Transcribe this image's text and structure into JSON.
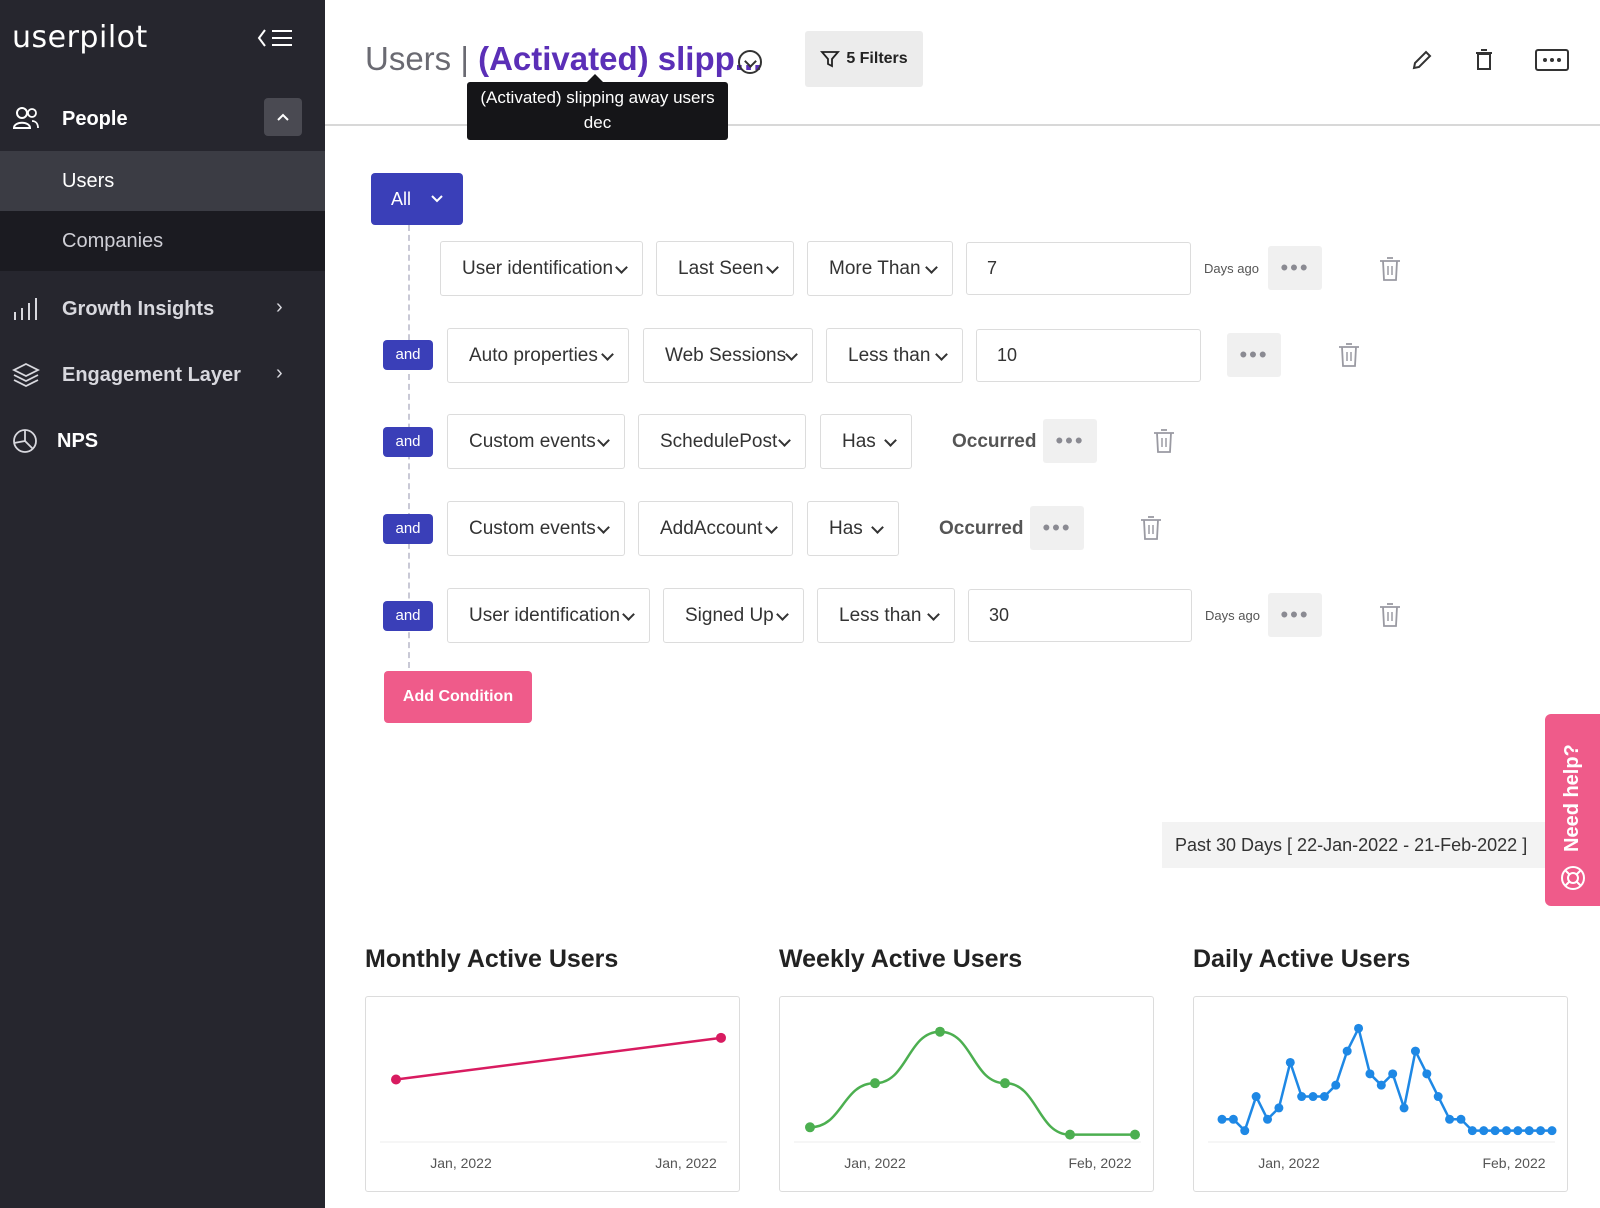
{
  "sidebar": {
    "logo": "userpilot",
    "people": "People",
    "users": "Users",
    "companies": "Companies",
    "growth": "Growth Insights",
    "engagement": "Engagement Layer",
    "nps": "NPS"
  },
  "header": {
    "title_prefix": "Users |",
    "segment_name": "(Activated) slipp...",
    "tooltip_line1": "(Activated) slipping away users",
    "tooltip_line2": "dec",
    "filters_label": "5 Filters"
  },
  "conditions": {
    "match": "All",
    "and_label": "and",
    "rows": [
      {
        "category": "User identification",
        "property": "Last Seen",
        "operator": "More Than",
        "value": "7",
        "suffix": "Days ago"
      },
      {
        "category": "Auto properties",
        "property": "Web Sessions",
        "operator": "Less than",
        "value": "10",
        "suffix": ""
      },
      {
        "category": "Custom events",
        "property": "SchedulePost",
        "operator": "Has",
        "value": "Occurred",
        "suffix": ""
      },
      {
        "category": "Custom events",
        "property": "AddAccount",
        "operator": "Has",
        "value": "Occurred",
        "suffix": ""
      },
      {
        "category": "User identification",
        "property": "Signed Up",
        "operator": "Less than",
        "value": "30",
        "suffix": "Days ago"
      }
    ],
    "add_label": "Add Condition"
  },
  "date_range": "Past 30 Days  [ 22-Jan-2022 - 21-Feb-2022 ]",
  "need_help": "Need help?",
  "colors": {
    "accent": "#3a3fb8",
    "pink": "#ef5b8a",
    "segment": "#5b2fb7",
    "mau": "#d81b60",
    "wau": "#4caf50",
    "dau": "#1e88e5"
  },
  "chart_data": [
    {
      "type": "line",
      "title": "Monthly Active Users",
      "x_ticks": [
        "Jan, 2022",
        "Jan, 2022"
      ],
      "series": [
        {
          "values": [
            3,
            5
          ]
        }
      ],
      "ylim": [
        0,
        6
      ]
    },
    {
      "type": "line",
      "title": "Weekly Active Users",
      "x_ticks": [
        "Jan, 2022",
        "Feb, 2022"
      ],
      "series": [
        {
          "values": [
            0.5,
            3.5,
            7,
            3.5,
            0,
            0
          ]
        }
      ],
      "ylim": [
        -0.5,
        8
      ]
    },
    {
      "type": "line",
      "title": "Daily Active Users",
      "x_ticks": [
        "Jan, 2022",
        "Feb, 2022"
      ],
      "series": [
        {
          "values": [
            1,
            1,
            0,
            3,
            1,
            2,
            6,
            3,
            3,
            3,
            4,
            7,
            9,
            5,
            4,
            5,
            2,
            7,
            5,
            3,
            1,
            1,
            0,
            0,
            0,
            0,
            0,
            0,
            0,
            0
          ]
        }
      ],
      "ylim": [
        -1,
        10
      ]
    }
  ]
}
